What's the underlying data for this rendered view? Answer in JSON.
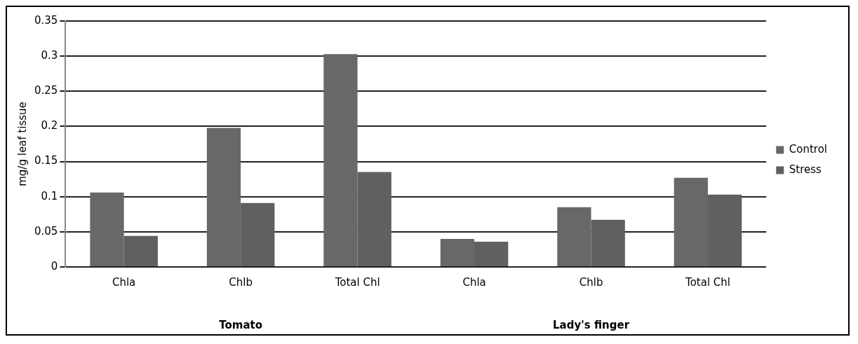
{
  "chart_data": {
    "type": "bar",
    "ylabel": "mg/g leaf tissue",
    "categories": [
      "Chla",
      "Chlb",
      "Total Chl",
      "Chla",
      "Chlb",
      "Total Chl"
    ],
    "series": [
      {
        "name": "Control",
        "color": "#686868",
        "values": [
          0.106,
          0.198,
          0.303,
          0.04,
          0.085,
          0.127
        ]
      },
      {
        "name": "Stress",
        "color": "#606060",
        "values": [
          0.044,
          0.091,
          0.135,
          0.036,
          0.067,
          0.103
        ]
      }
    ],
    "ylim": [
      0,
      0.35
    ],
    "yticks": [
      0,
      0.05,
      0.1,
      0.15,
      0.2,
      0.25,
      0.3,
      0.35
    ],
    "grid": "y",
    "legend": "right",
    "annotations": [
      "Tomato",
      "Lady's finger"
    ]
  }
}
